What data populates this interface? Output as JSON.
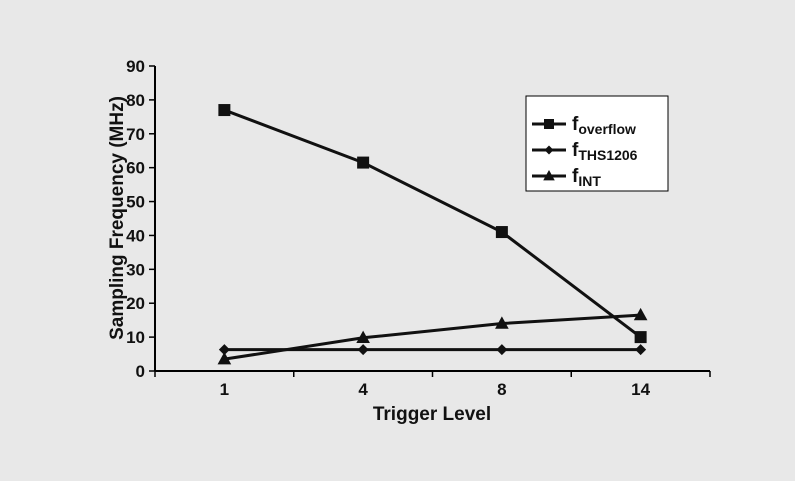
{
  "chart_data": {
    "type": "line",
    "categories": [
      "1",
      "4",
      "8",
      "14"
    ],
    "series": [
      {
        "name": "f",
        "sub": "overflow",
        "marker": "square",
        "values": [
          77,
          61.5,
          41,
          10
        ]
      },
      {
        "name": "f",
        "sub": "THS1206",
        "marker": "diamond",
        "values": [
          6.3,
          6.3,
          6.3,
          6.3
        ]
      },
      {
        "name": "f",
        "sub": "INT",
        "marker": "triangle",
        "values": [
          3.5,
          9.8,
          14,
          16.5
        ]
      }
    ],
    "xlabel": "Trigger Level",
    "ylabel": "Sampling Frequency (MHz)",
    "ylim": [
      0,
      90
    ],
    "yticks": [
      "0",
      "10",
      "20",
      "30",
      "40",
      "50",
      "60",
      "70",
      "80",
      "90"
    ],
    "grid": false,
    "legend": "top-right"
  }
}
